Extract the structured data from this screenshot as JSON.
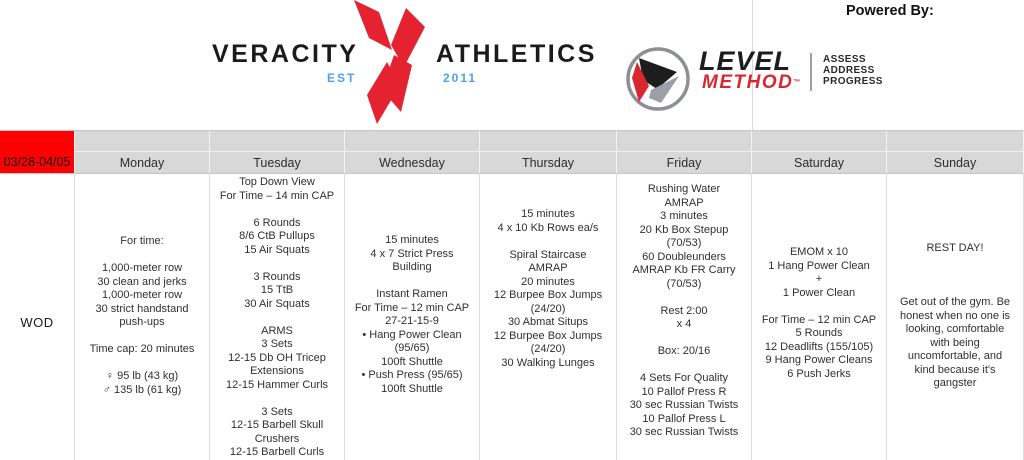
{
  "header": {
    "powered_by": "Powered By:",
    "veracity": {
      "name_left": "VERACITY",
      "name_right": "ATHLETICS",
      "est_label": "EST",
      "est_year": "2011"
    },
    "level_method": {
      "brand_top": "LEVEL",
      "brand_bottom": "METHOD",
      "trademark": "™",
      "tagline": [
        "ASSESS",
        "ADDRESS",
        "PROGRESS"
      ]
    }
  },
  "colors": {
    "accent_red": "#ff0000",
    "logo_red": "#e52330",
    "logo_blue": "#4da4ea",
    "brand_method_red": "#d7282f",
    "header_gray": "#d8d8d8"
  },
  "calendar": {
    "date_range": "03/28-04/05",
    "row_label": "WOD",
    "days": [
      {
        "label": "Monday",
        "groups": [
          [
            "For time:"
          ],
          [
            "1,000-meter row",
            "30 clean and jerks",
            "1,000-meter row",
            "30 strict handstand",
            "push-ups"
          ],
          [
            "Time cap: 20 minutes"
          ],
          [
            "♀ 95 lb (43 kg)",
            "♂ 135 lb (61 kg)"
          ]
        ]
      },
      {
        "label": "Tuesday",
        "groups": [
          [
            "Top Down View",
            "For Time – 14 min CAP"
          ],
          [
            "6 Rounds",
            "8/6 CtB Pullups",
            "15 Air Squats"
          ],
          [
            "3 Rounds",
            "15 TtB",
            "30 Air Squats"
          ],
          [
            "ARMS",
            "3 Sets",
            "12-15 Db OH Tricep",
            "Extensions",
            "12-15 Hammer Curls"
          ],
          [
            "3 Sets",
            "12-15 Barbell Skull",
            "Crushers",
            "12-15 Barbell Curls"
          ]
        ]
      },
      {
        "label": "Wednesday",
        "groups": [
          [
            "15 minutes",
            "4 x 7 Strict Press",
            "Building"
          ],
          [
            "Instant Ramen",
            "For Time – 12 min CAP",
            "27-21-15-9",
            "• Hang Power Clean",
            "(95/65)",
            "100ft Shuttle",
            "• Push Press (95/65)",
            "100ft Shuttle"
          ]
        ]
      },
      {
        "label": "Thursday",
        "groups": [
          [
            "15 minutes",
            "4 x 10 Kb Rows ea/s"
          ],
          [
            "Spiral Staircase",
            "AMRAP",
            "20 minutes",
            "12 Burpee Box Jumps",
            "(24/20)",
            "30 Abmat Situps",
            "12 Burpee Box Jumps",
            "(24/20)",
            "30 Walking Lunges"
          ]
        ]
      },
      {
        "label": "Friday",
        "groups": [
          [
            "Rushing Water",
            "AMRAP",
            "3 minutes",
            "20 Kb Box Stepup",
            "(70/53)",
            "60 Doubleunders",
            "AMRAP Kb FR Carry",
            "(70/53)"
          ],
          [
            "Rest 2:00",
            "x 4"
          ],
          [
            "Box: 20/16"
          ],
          [
            "4 Sets For Quality",
            "10 Pallof Press R",
            "30 sec Russian Twists",
            "10 Pallof Press L",
            "30 sec Russian Twists"
          ]
        ]
      },
      {
        "label": "Saturday",
        "groups": [
          [
            "EMOM x 10",
            "1 Hang Power Clean",
            "+",
            "1 Power Clean"
          ],
          [
            "For Time – 12 min CAP",
            "5 Rounds",
            "12 Deadlifts (155/105)",
            "9 Hang Power Cleans",
            "6 Push Jerks"
          ]
        ]
      },
      {
        "label": "Sunday",
        "groups": [
          [
            "REST DAY!"
          ],
          [],
          [
            "Get out of the gym. Be",
            "honest when no one is",
            "looking, comfortable",
            "with being",
            "uncomfortable, and",
            "kind because it's",
            "gangster"
          ]
        ]
      }
    ]
  }
}
